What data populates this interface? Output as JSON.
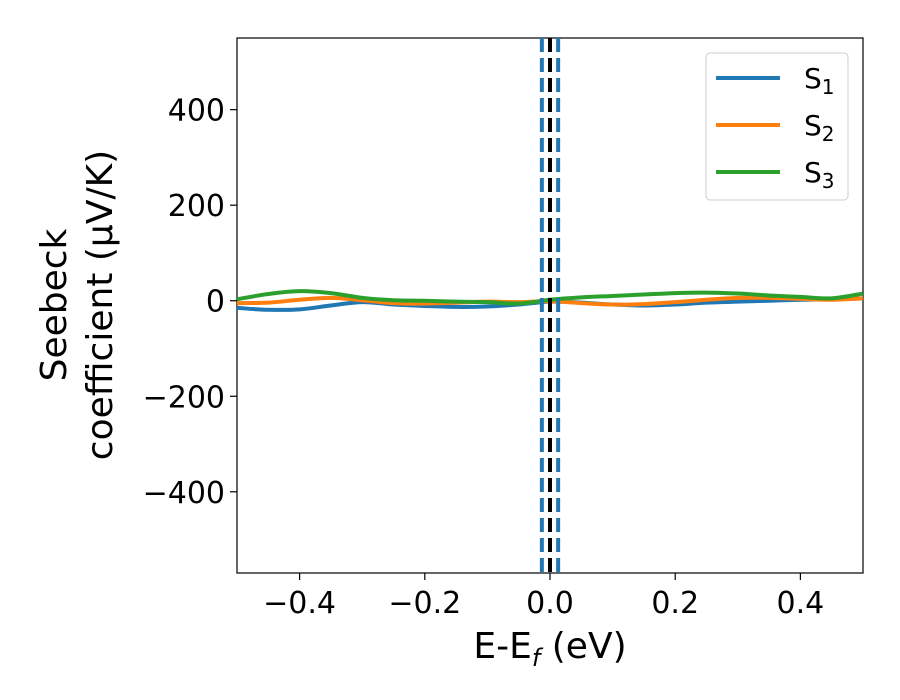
{
  "chart_data": {
    "type": "line",
    "xlabel_main": "E-E",
    "xlabel_sub": "f",
    "xlabel_unit": " (eV)",
    "ylabel_line1": "Seebeck",
    "ylabel_line2": "coefficient  (μV/K)",
    "xlim": [
      -0.5,
      0.5
    ],
    "ylim": [
      -570,
      550
    ],
    "xticks": [
      -0.4,
      -0.2,
      0.0,
      0.2,
      0.4
    ],
    "xtick_labels": [
      "−0.4",
      "−0.2",
      "0.0",
      "0.2",
      "0.4"
    ],
    "yticks": [
      400,
      200,
      0,
      -200,
      -400
    ],
    "ytick_labels": [
      "400",
      "200",
      "0",
      "−200",
      "−400"
    ],
    "grid": false,
    "legend_position": "top-right",
    "x": [
      -0.5,
      -0.45,
      -0.4,
      -0.35,
      -0.3,
      -0.25,
      -0.2,
      -0.15,
      -0.1,
      -0.05,
      0.0,
      0.05,
      0.1,
      0.15,
      0.2,
      0.25,
      0.3,
      0.35,
      0.4,
      0.45,
      0.5
    ],
    "series": [
      {
        "name_main": "S",
        "name_sub": "1",
        "color": "#1f77b4",
        "values": [
          -15,
          -19,
          -18,
          -10,
          -3,
          -8,
          -11,
          -13,
          -12,
          -8,
          -2,
          -4,
          -8,
          -10,
          -8,
          -4,
          -2,
          0,
          2,
          3,
          5
        ]
      },
      {
        "name_main": "S",
        "name_sub": "2",
        "color": "#ff7f0e",
        "values": [
          -5,
          -4,
          2,
          6,
          1,
          -5,
          -6,
          -4,
          -2,
          -3,
          -1,
          -5,
          -8,
          -7,
          -3,
          2,
          6,
          6,
          4,
          2,
          5
        ]
      },
      {
        "name_main": "S",
        "name_sub": "3",
        "color": "#2ca02c",
        "values": [
          3,
          14,
          20,
          16,
          6,
          1,
          0,
          -2,
          -3,
          -6,
          2,
          7,
          10,
          13,
          16,
          17,
          15,
          11,
          8,
          5,
          15
        ]
      }
    ],
    "vlines": [
      {
        "x": -0.013,
        "color": "#1f77b4",
        "style": "dashed"
      },
      {
        "x": 0.013,
        "color": "#1f77b4",
        "style": "dashed"
      },
      {
        "x": 0.0,
        "color": "#000000",
        "style": "dashed"
      }
    ]
  }
}
